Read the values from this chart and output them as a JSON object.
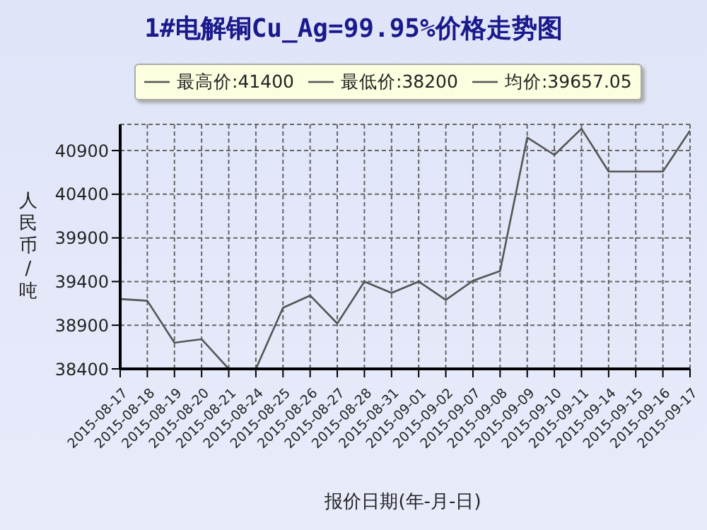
{
  "chart_data": {
    "type": "line",
    "title": "1#电解铜Cu_Ag=99.95%价格走势图",
    "xlabel": "报价日期(年-月-日)",
    "ylabel": "人民币/吨",
    "annotations": [
      "最高价:41400",
      "最低价:38200",
      "均价:39657.05"
    ],
    "categories": [
      "2015-08-17",
      "2015-08-18",
      "2015-08-19",
      "2015-08-20",
      "2015-08-21",
      "2015-08-24",
      "2015-08-25",
      "2015-08-26",
      "2015-08-27",
      "2015-08-28",
      "2015-08-31",
      "2015-09-01",
      "2015-09-02",
      "2015-09-07",
      "2015-09-08",
      "2015-09-09",
      "2015-09-10",
      "2015-09-11",
      "2015-09-14",
      "2015-09-15",
      "2015-09-16",
      "2015-09-17"
    ],
    "series": [
      {
        "color": "#555555",
        "values": [
          39200,
          39180,
          38700,
          38740,
          38400,
          38400,
          39100,
          39240,
          38920,
          39400,
          39270,
          39400,
          39190,
          39410,
          39520,
          41050,
          40850,
          41150,
          40660,
          40660,
          40660,
          41130
        ]
      }
    ],
    "ylim": [
      38400,
      41200
    ],
    "yticks": [
      38400,
      38900,
      39400,
      39900,
      40400,
      40900
    ],
    "grid": true,
    "marker": "none",
    "line_style": "solid"
  }
}
